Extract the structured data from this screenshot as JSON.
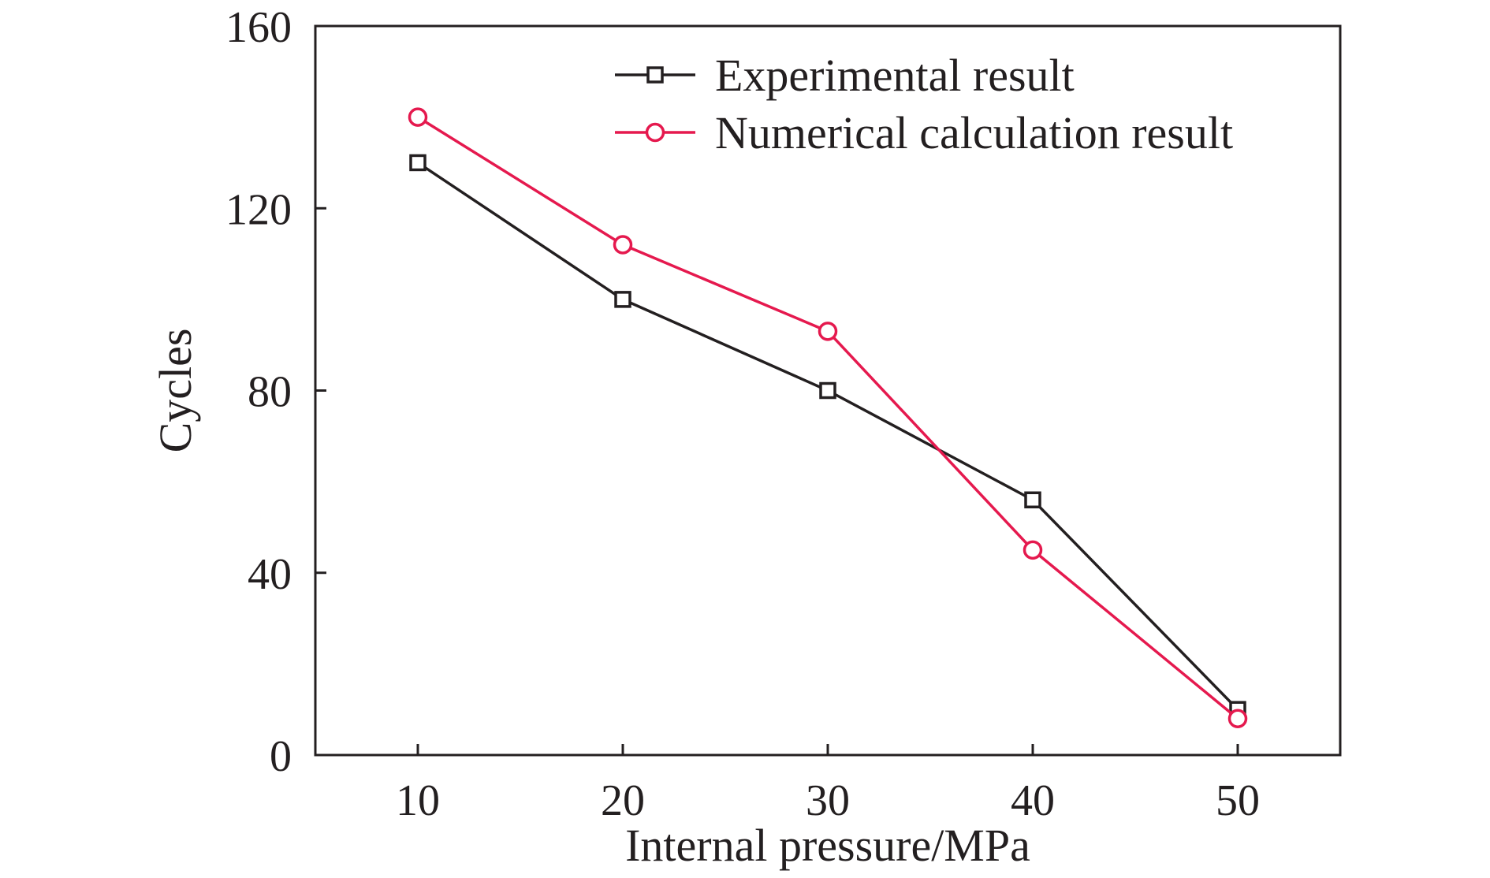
{
  "chart_data": {
    "type": "line",
    "title": "",
    "xlabel": "Internal pressure/MPa",
    "ylabel": "Cycles",
    "x": [
      10,
      20,
      30,
      40,
      50
    ],
    "xlim": [
      5,
      55
    ],
    "ylim": [
      0,
      160
    ],
    "xticks": [
      10,
      20,
      30,
      40,
      50
    ],
    "yticks": [
      0,
      40,
      80,
      120,
      160
    ],
    "grid": false,
    "legend_position": "top-right",
    "series": [
      {
        "name": "Experimental result",
        "marker": "square",
        "color": "#231f20",
        "values": [
          130,
          100,
          80,
          56,
          10
        ]
      },
      {
        "name": "Numerical calculation result",
        "marker": "circle",
        "color": "#e5194e",
        "marker_fill": "#ffffff",
        "values": [
          140,
          112,
          93,
          45,
          8
        ]
      }
    ]
  }
}
